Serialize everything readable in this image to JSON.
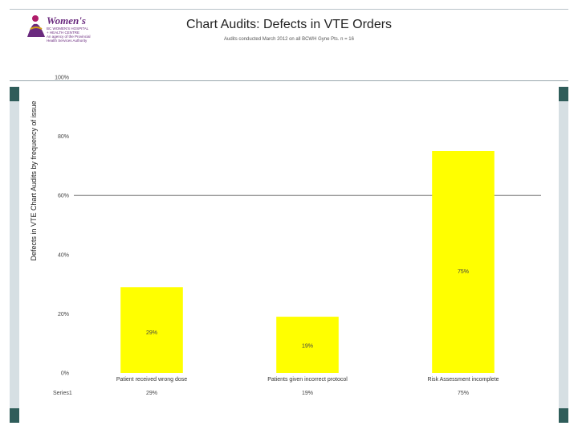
{
  "logo": {
    "name": "Women's",
    "subtitle_lines": [
      "BC WOMEN'S HOSPITAL",
      "+ HEALTH CENTRE",
      "An agency of the Provincial",
      "Health Services Authority"
    ]
  },
  "header": {
    "title": "Chart Audits: Defects in VTE Orders",
    "subtitle": "Audits conducted March 2012 on all BCWH Gyne Pts. n = 16"
  },
  "colors": {
    "bar": "#ffff00",
    "frame_accent": "#2f5d5a",
    "frame_strip": "#d6dfe3"
  },
  "chart_data": {
    "type": "bar",
    "ylabel": "Defects in VTE Chart Audits by frequency of issue",
    "categories": [
      "Patient received wrong dose",
      "Patients given incorrect protocol",
      "Risk Assessment incomplete"
    ],
    "series": [
      {
        "name": "Series1",
        "values": [
          29,
          19,
          75
        ],
        "labels": [
          "29%",
          "19%",
          "75%"
        ]
      }
    ],
    "ylim": [
      0,
      100
    ],
    "yticks": [
      "0%",
      "20%",
      "40%",
      "60%",
      "80%",
      "100%"
    ],
    "reference_line": 60,
    "grid": false,
    "legend": "none"
  }
}
